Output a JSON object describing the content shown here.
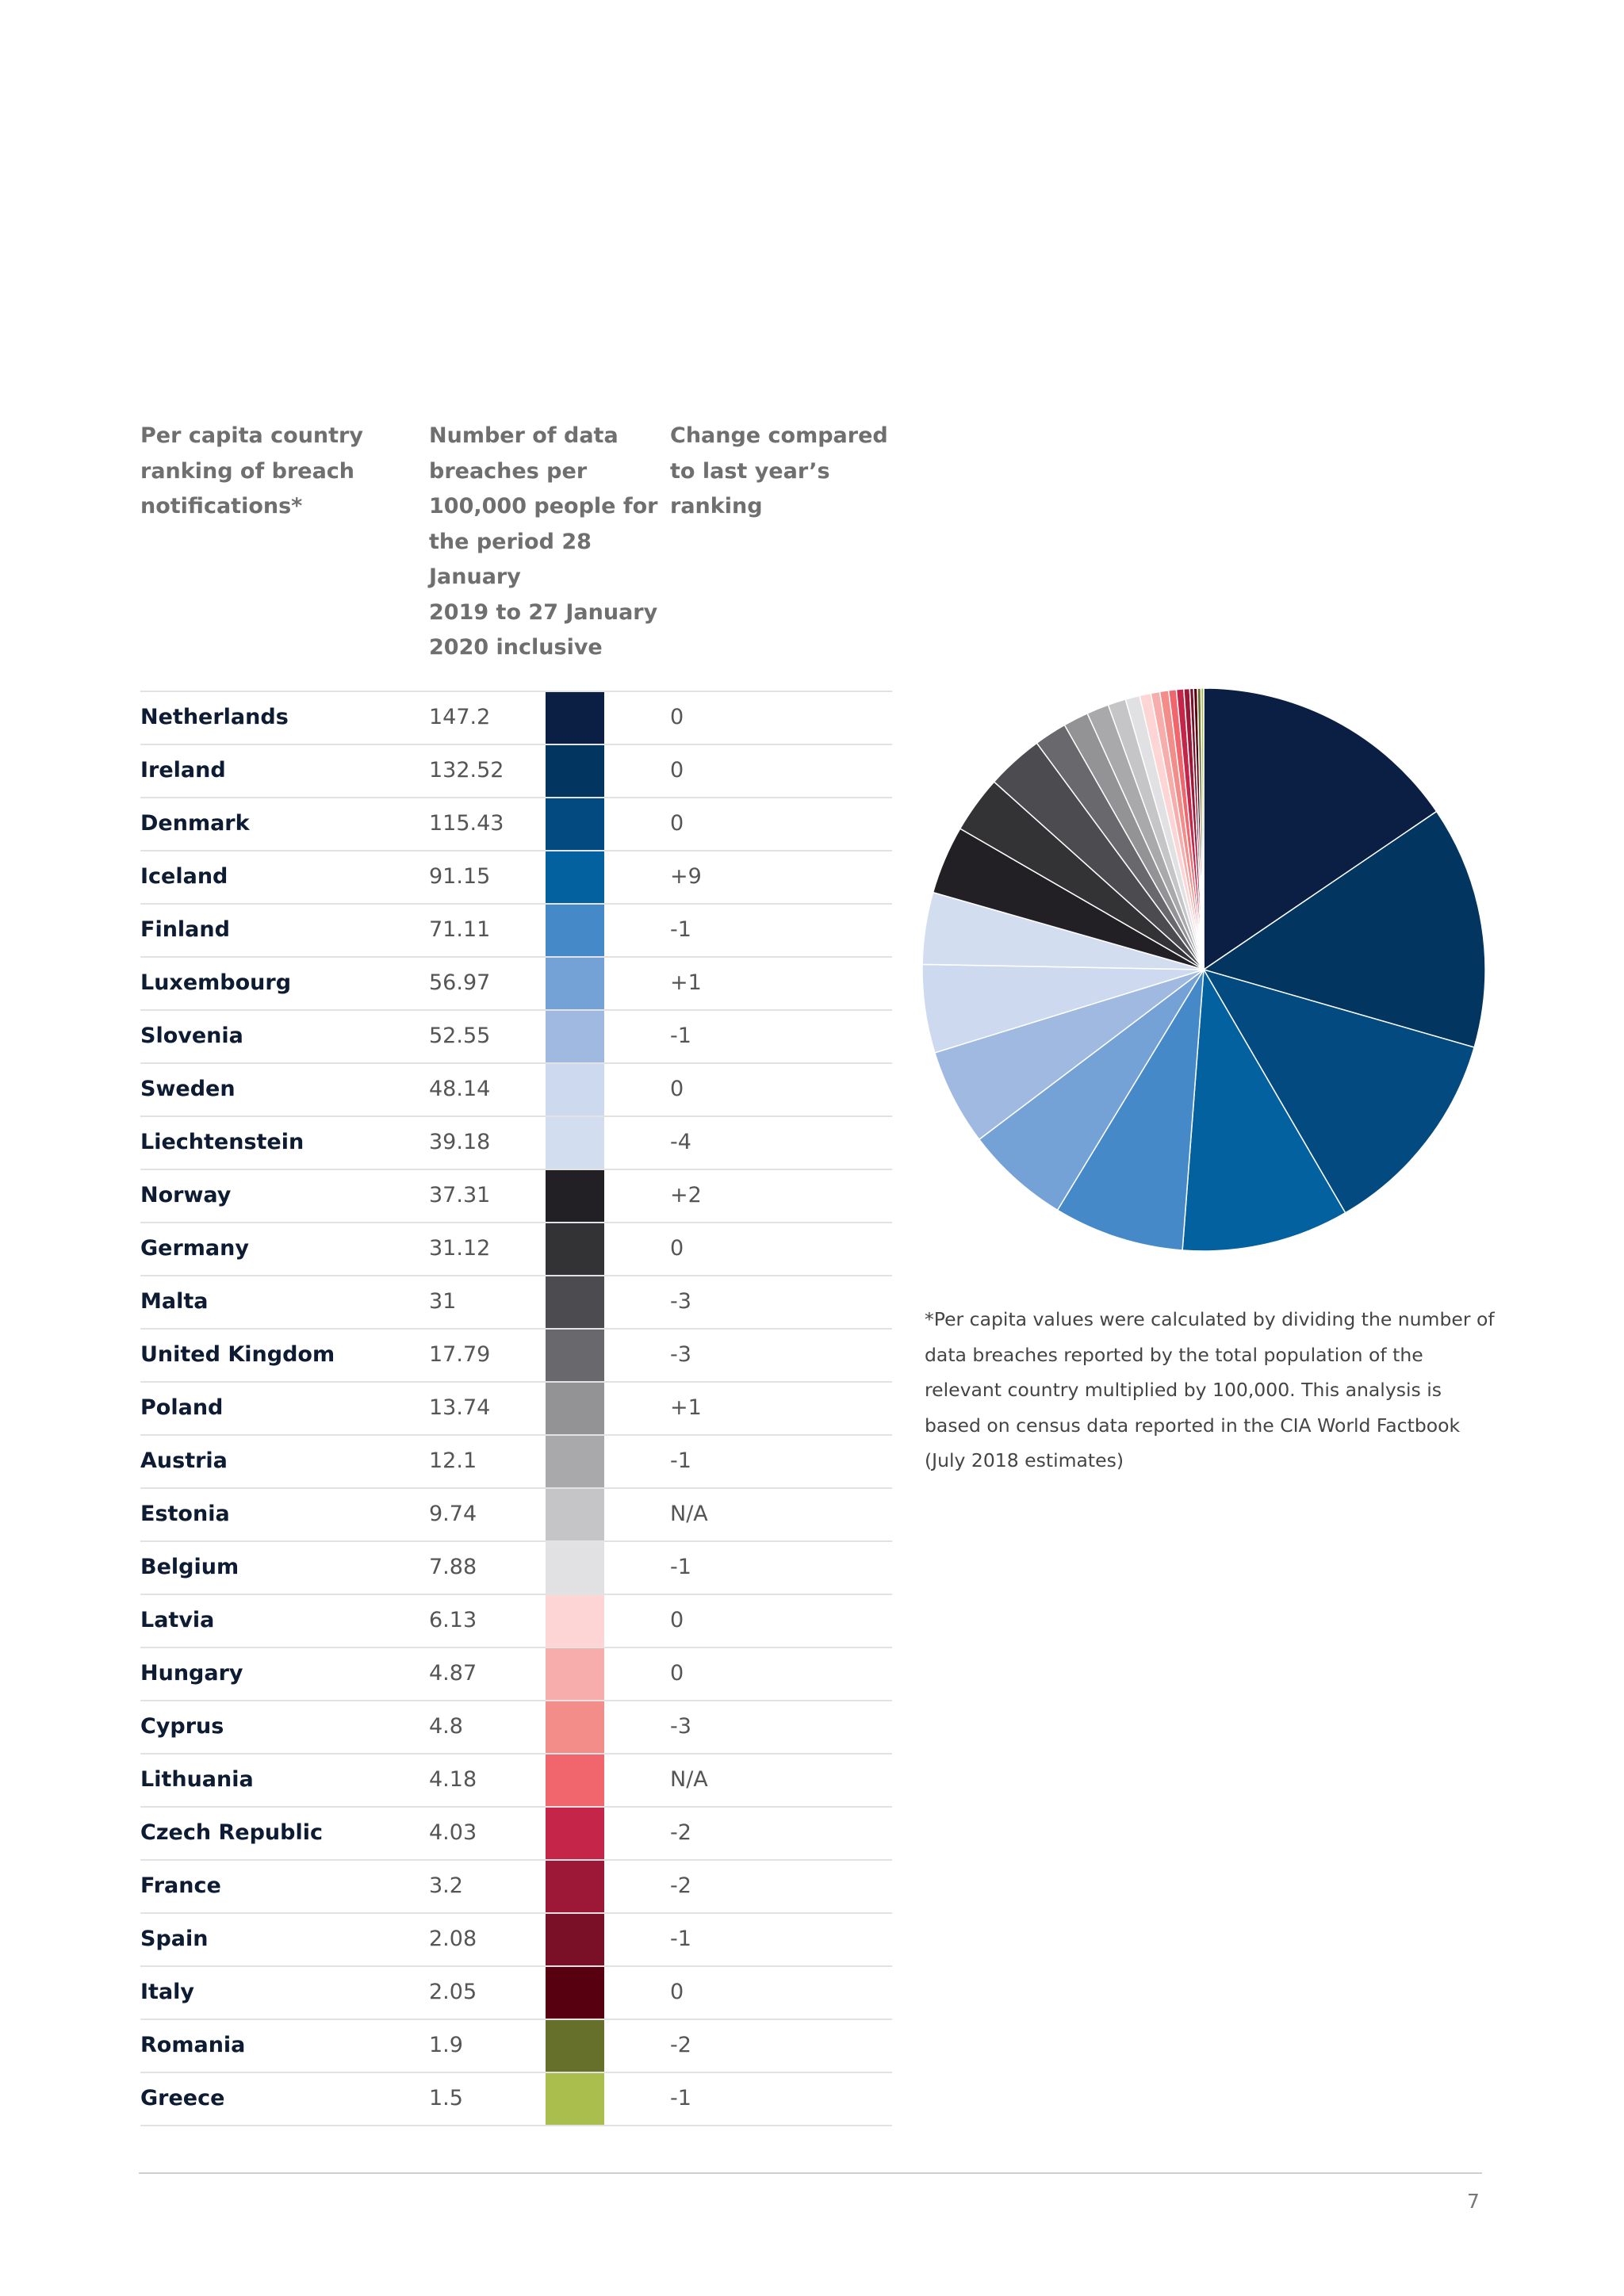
{
  "headers": {
    "country": "Per capita country\nranking of breach\nnotifications*",
    "value": "Number of data\nbreaches per\n100,000 people for\nthe period 28 January\n2019 to 27 January\n2020 inclusive",
    "change": "Change compared\nto last year’s\nranking"
  },
  "chart_data": {
    "type": "pie",
    "title": "Per capita country ranking of breach notifications",
    "start_angle": "top, clockwise",
    "slices": [
      {
        "label": "Netherlands",
        "value": 147.2,
        "change": "0",
        "color": "#0b1f44"
      },
      {
        "label": "Ireland",
        "value": 132.52,
        "change": "0",
        "color": "#033561"
      },
      {
        "label": "Denmark",
        "value": 115.43,
        "change": "0",
        "color": "#024a80"
      },
      {
        "label": "Iceland",
        "value": 91.15,
        "change": "+9",
        "color": "#0361a0"
      },
      {
        "label": "Finland",
        "value": 71.11,
        "change": "-1",
        "color": "#4589c9"
      },
      {
        "label": "Luxembourg",
        "value": 56.97,
        "change": "+1",
        "color": "#74a1d6"
      },
      {
        "label": "Slovenia",
        "value": 52.55,
        "change": "-1",
        "color": "#a0b9e0"
      },
      {
        "label": "Sweden",
        "value": 48.14,
        "change": "0",
        "color": "#cdd9ef"
      },
      {
        "label": "Liechtenstein",
        "value": 39.18,
        "change": "-4",
        "color": "#d3ddf0"
      },
      {
        "label": "Norway",
        "value": 37.31,
        "change": "+2",
        "color": "#222024"
      },
      {
        "label": "Germany",
        "value": 31.12,
        "change": "0",
        "color": "#333235"
      },
      {
        "label": "Malta",
        "value": 31,
        "change": "-3",
        "color": "#4c4b4f"
      },
      {
        "label": "United Kingdom",
        "value": 17.79,
        "change": "-3",
        "color": "#69686c"
      },
      {
        "label": "Poland",
        "value": 13.74,
        "change": "+1",
        "color": "#939295"
      },
      {
        "label": "Austria",
        "value": 12.1,
        "change": "-1",
        "color": "#a9a8ab"
      },
      {
        "label": "Estonia",
        "value": 9.74,
        "change": "N/A",
        "color": "#c5c5c7"
      },
      {
        "label": "Belgium",
        "value": 7.88,
        "change": "-1",
        "color": "#e1e1e3"
      },
      {
        "label": "Latvia",
        "value": 6.13,
        "change": "0",
        "color": "#fcd5d4"
      },
      {
        "label": "Hungary",
        "value": 4.87,
        "change": "0",
        "color": "#f7adab"
      },
      {
        "label": "Cyprus",
        "value": 4.8,
        "change": "-3",
        "color": "#f38d89"
      },
      {
        "label": "Lithuania",
        "value": 4.18,
        "change": "N/A",
        "color": "#f0666c"
      },
      {
        "label": "Czech Republic",
        "value": 4.03,
        "change": "-2",
        "color": "#c6254a"
      },
      {
        "label": "France",
        "value": 3.2,
        "change": "-2",
        "color": "#9c1836"
      },
      {
        "label": "Spain",
        "value": 2.08,
        "change": "-1",
        "color": "#7a1028"
      },
      {
        "label": "Italy",
        "value": 2.05,
        "change": "0",
        "color": "#560010"
      },
      {
        "label": "Romania",
        "value": 1.9,
        "change": "-2",
        "color": "#67702a"
      },
      {
        "label": "Greece",
        "value": 1.5,
        "change": "-1",
        "color": "#aabe4e"
      }
    ]
  },
  "footnote": "*Per capita values were calculated by dividing the number of data breaches reported by the total population of the relevant country multiplied by 100,000. This analysis is based on census data reported in the CIA World Factbook (July 2018 estimates)",
  "page_number": "7"
}
